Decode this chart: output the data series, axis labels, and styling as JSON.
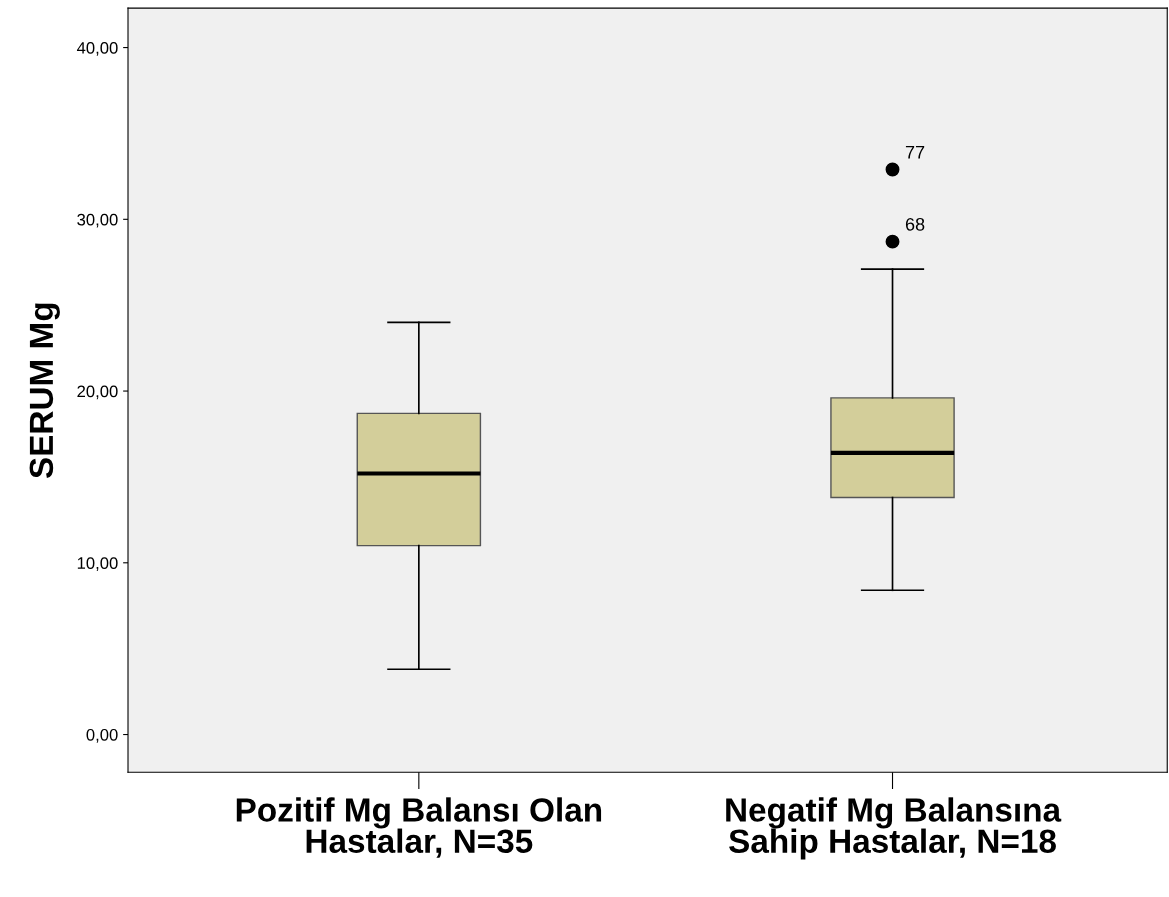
{
  "chart_data": {
    "type": "box",
    "ylabel": "SERUM Mg",
    "categories": [
      "Pozitif Mg Balansı Olan Hastalar, N=35",
      "Negatif Mg Balansına Sahip Hastalar, N=18"
    ],
    "boxes": [
      {
        "low": 3.8,
        "q1": 11.0,
        "median": 15.2,
        "q3": 18.7,
        "high": 24.0
      },
      {
        "low": 8.4,
        "q1": 13.8,
        "median": 16.4,
        "q3": 19.6,
        "high": 27.1,
        "outliers": [
          32.9,
          28.7
        ]
      }
    ],
    "color": "#d3ce9a",
    "ylim": [
      -2.2,
      42.3
    ],
    "yticks": [
      {
        "value": 0,
        "label": "0,00"
      },
      {
        "value": 10,
        "label": "10,00"
      },
      {
        "value": 20,
        "label": "20,00"
      },
      {
        "value": 30,
        "label": "30,00"
      },
      {
        "value": 40,
        "label": "40,00"
      }
    ],
    "grid": false,
    "annotations": [
      "77",
      "68"
    ]
  }
}
